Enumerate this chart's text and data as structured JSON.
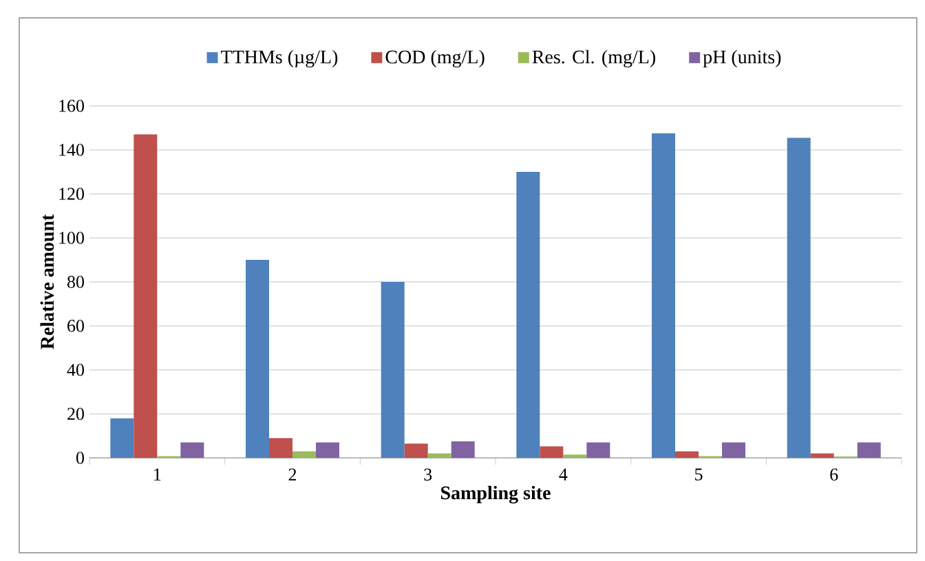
{
  "chart_data": {
    "type": "bar",
    "xlabel": "Sampling site",
    "ylabel": "Relative amount",
    "categories": [
      "1",
      "2",
      "3",
      "4",
      "5",
      "6"
    ],
    "series": [
      {
        "name": "TTHMs (µg/L)",
        "color": "#4f81bd",
        "values": [
          18,
          90,
          80,
          130,
          147.5,
          145.5
        ]
      },
      {
        "name": "COD (mg/L)",
        "color": "#c0504d",
        "values": [
          147,
          9,
          6.5,
          5.2,
          3,
          2
        ]
      },
      {
        "name": "Res. Cl. (mg/L)",
        "color": "#9bbb59",
        "values": [
          0.8,
          3,
          2,
          1.5,
          0.8,
          0.6
        ]
      },
      {
        "name": "pH (units)",
        "color": "#8064a2",
        "values": [
          7,
          7,
          7.5,
          7,
          7,
          7
        ]
      }
    ],
    "ylim": [
      0,
      160
    ],
    "yticks": [
      0,
      20,
      40,
      60,
      80,
      100,
      120,
      140,
      160
    ],
    "grid": "y",
    "legend": "top"
  }
}
